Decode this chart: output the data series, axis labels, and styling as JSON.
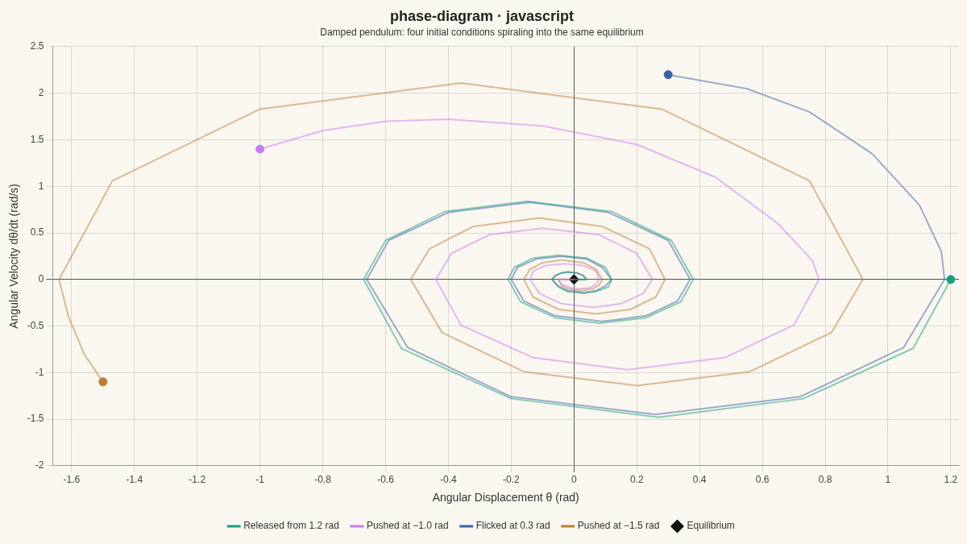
{
  "chart_data": {
    "type": "line",
    "title": "phase-diagram · javascript",
    "subtitle": "Damped pendulum: four initial conditions spiraling into the same equilibrium",
    "xlabel": "Angular Displacement θ (rad)",
    "ylabel": "Angular Velocity dθ/dt (rad/s)",
    "xlim": [
      -1.66,
      1.226
    ],
    "ylim": [
      -2,
      2.5
    ],
    "xticks": [
      -1.6,
      -1.4,
      -1.2,
      -1,
      -0.8,
      -0.6,
      -0.4,
      -0.2,
      0,
      0.2,
      0.4,
      0.6,
      0.8,
      1,
      1.2
    ],
    "yticks": [
      -2,
      -1.5,
      -1,
      -0.5,
      0,
      0.5,
      1,
      1.5,
      2,
      2.5
    ],
    "grid": true,
    "legend": "bottom",
    "line_style": "solid",
    "series": [
      {
        "name": "Released from 1.2 rad",
        "color": "#17a07a",
        "marker": "none",
        "x": [
          1.2,
          1.08,
          0.73,
          0.27,
          -0.2,
          -0.55,
          -0.67,
          -0.6,
          -0.41,
          -0.15,
          0.12,
          0.31,
          0.38,
          0.34,
          0.23,
          0.08,
          -0.06,
          -0.17,
          -0.21,
          -0.19,
          -0.13,
          -0.05,
          0.04,
          0.1,
          0.12,
          0.11,
          0.07,
          0.03,
          -0.02,
          -0.05,
          -0.07,
          -0.06,
          -0.04,
          -0.02,
          0.01,
          0.03,
          0.04,
          0
        ],
        "values": [
          0,
          -0.74,
          -1.28,
          -1.48,
          -1.28,
          -0.74,
          0,
          0.42,
          0.73,
          0.84,
          0.73,
          0.42,
          0,
          -0.24,
          -0.41,
          -0.47,
          -0.41,
          -0.24,
          0,
          0.13,
          0.23,
          0.26,
          0.23,
          0.13,
          0,
          -0.08,
          -0.13,
          -0.15,
          -0.13,
          -0.08,
          0,
          0.04,
          0.07,
          0.08,
          0.07,
          0.04,
          0,
          0
        ]
      },
      {
        "name": "Pushed at −1.0 rad",
        "color": "#c77cf0",
        "marker": "none",
        "x": [
          -1,
          -0.8,
          -0.6,
          -0.4,
          -0.1,
          0.2,
          0.45,
          0.65,
          0.76,
          0.78,
          0.7,
          0.48,
          0.17,
          -0.13,
          -0.36,
          -0.44,
          -0.39,
          -0.27,
          -0.1,
          0.08,
          0.2,
          0.25,
          0.22,
          0.15,
          0.06,
          -0.04,
          -0.11,
          -0.14,
          -0.13,
          -0.09,
          -0.03,
          0.03,
          0.07,
          0.08,
          0.07,
          0.05,
          0.02,
          -0.01,
          -0.04,
          -0.05,
          0
        ],
        "values": [
          1.4,
          1.6,
          1.7,
          1.72,
          1.65,
          1.45,
          1.1,
          0.6,
          0.2,
          0,
          -0.49,
          -0.84,
          -0.97,
          -0.84,
          -0.49,
          0,
          0.28,
          0.48,
          0.55,
          0.48,
          0.28,
          0,
          -0.15,
          -0.26,
          -0.3,
          -0.26,
          -0.15,
          0,
          0.09,
          0.15,
          0.17,
          0.15,
          0.09,
          0,
          -0.05,
          -0.09,
          -0.1,
          -0.09,
          -0.05,
          0,
          0
        ]
      },
      {
        "name": "Flicked at 0.3 rad",
        "color": "#3d5fa8",
        "marker": "none",
        "x": [
          0.3,
          0.55,
          0.75,
          0.95,
          1.1,
          1.17,
          1.18,
          1.05,
          0.72,
          0.26,
          -0.2,
          -0.53,
          -0.66,
          -0.59,
          -0.4,
          -0.14,
          0.11,
          0.3,
          0.37,
          0.33,
          0.23,
          0.09,
          -0.06,
          -0.16,
          -0.2,
          -0.18,
          -0.12,
          -0.04,
          0.04,
          0.09,
          0.12,
          0.1,
          0.07,
          0.03,
          -0.02,
          -0.05,
          -0.07,
          -0.06,
          -0.04,
          -0.02,
          0.01,
          0.03,
          0.04,
          0
        ],
        "values": [
          2.2,
          2.05,
          1.8,
          1.35,
          0.8,
          0.3,
          0,
          -0.73,
          -1.26,
          -1.45,
          -1.26,
          -0.73,
          0,
          0.42,
          0.72,
          0.83,
          0.72,
          0.42,
          0,
          -0.23,
          -0.39,
          -0.45,
          -0.39,
          -0.23,
          0,
          0.13,
          0.22,
          0.25,
          0.22,
          0.13,
          0,
          -0.07,
          -0.12,
          -0.14,
          -0.12,
          -0.07,
          0,
          0.04,
          0.07,
          0.08,
          0.07,
          0.04,
          0,
          0
        ]
      },
      {
        "name": "Pushed at −1.5 rad",
        "color": "#b87e36",
        "marker": "none",
        "x": [
          -1.5,
          -1.56,
          -1.61,
          -1.64,
          -1.47,
          -1,
          -0.36,
          0.28,
          0.75,
          0.92,
          0.82,
          0.56,
          0.2,
          -0.16,
          -0.42,
          -0.52,
          -0.46,
          -0.32,
          -0.11,
          0.09,
          0.24,
          0.29,
          0.26,
          0.18,
          0.07,
          -0.05,
          -0.13,
          -0.16,
          -0.14,
          -0.1,
          -0.04,
          0.03,
          0.07,
          0.09,
          0.08,
          0.06,
          0.02,
          -0.02,
          -0.04,
          -0.05,
          0
        ],
        "values": [
          -1.1,
          -0.8,
          -0.4,
          0,
          1.06,
          1.83,
          2.11,
          1.83,
          1.06,
          0,
          -0.57,
          -0.99,
          -1.14,
          -0.99,
          -0.57,
          0,
          0.33,
          0.57,
          0.66,
          0.57,
          0.33,
          0,
          -0.19,
          -0.32,
          -0.37,
          -0.32,
          -0.19,
          0,
          0.11,
          0.18,
          0.21,
          0.18,
          0.11,
          0,
          -0.06,
          -0.1,
          -0.12,
          -0.1,
          -0.06,
          0,
          0
        ]
      },
      {
        "type": "scatter",
        "marker": "circle",
        "colors": [
          "#17a07a",
          "#c77cf0",
          "#3d5fa8",
          "#b87e36"
        ],
        "x": [
          1.2,
          -1,
          0.3,
          -1.5
        ],
        "values": [
          0,
          1.4,
          2.2,
          -1.1
        ]
      },
      {
        "name": "Equilibrium",
        "type": "scatter",
        "color": "#111111",
        "marker": "diamond",
        "x": [
          0
        ],
        "values": [
          0
        ]
      }
    ]
  }
}
